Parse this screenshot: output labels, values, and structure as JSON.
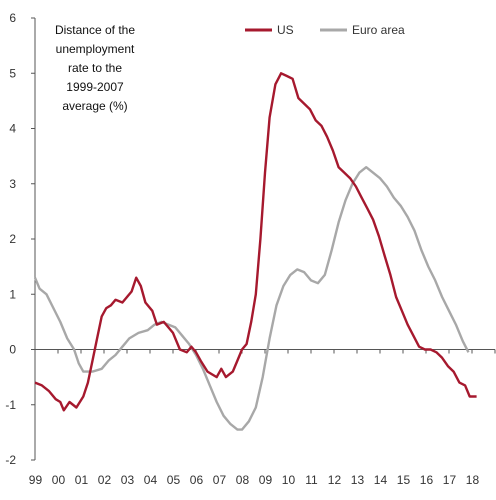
{
  "chart_data": {
    "type": "line",
    "title_lines": [
      "Distance of the",
      "unemployment",
      "rate to the",
      "1999-2007",
      "average (%)"
    ],
    "xlabel": "",
    "ylabel": "",
    "x_ticks": [
      "99",
      "00",
      "01",
      "02",
      "03",
      "04",
      "05",
      "06",
      "07",
      "08",
      "09",
      "10",
      "11",
      "12",
      "13",
      "14",
      "15",
      "16",
      "17",
      "18"
    ],
    "xlim": [
      1999.0,
      2019.0
    ],
    "ylim": [
      -2,
      6
    ],
    "y_ticks": [
      -2,
      -1,
      0,
      1,
      2,
      3,
      4,
      5,
      6
    ],
    "grid": false,
    "legend_position": "top-right",
    "series": [
      {
        "name": "US",
        "color": "#a6192e",
        "points": [
          [
            1999.0,
            -0.6
          ],
          [
            1999.3,
            -0.65
          ],
          [
            1999.6,
            -0.75
          ],
          [
            1999.9,
            -0.9
          ],
          [
            2000.1,
            -0.95
          ],
          [
            2000.25,
            -1.1
          ],
          [
            2000.5,
            -0.95
          ],
          [
            2000.8,
            -1.05
          ],
          [
            2001.1,
            -0.85
          ],
          [
            2001.3,
            -0.6
          ],
          [
            2001.5,
            -0.2
          ],
          [
            2001.7,
            0.2
          ],
          [
            2001.9,
            0.6
          ],
          [
            2002.1,
            0.75
          ],
          [
            2002.3,
            0.8
          ],
          [
            2002.5,
            0.9
          ],
          [
            2002.8,
            0.85
          ],
          [
            2003.0,
            0.95
          ],
          [
            2003.2,
            1.05
          ],
          [
            2003.4,
            1.3
          ],
          [
            2003.6,
            1.15
          ],
          [
            2003.8,
            0.85
          ],
          [
            2004.1,
            0.7
          ],
          [
            2004.3,
            0.45
          ],
          [
            2004.6,
            0.5
          ],
          [
            2004.8,
            0.4
          ],
          [
            2005.0,
            0.3
          ],
          [
            2005.3,
            0.0
          ],
          [
            2005.6,
            -0.05
          ],
          [
            2005.8,
            0.05
          ],
          [
            2006.0,
            -0.05
          ],
          [
            2006.2,
            -0.2
          ],
          [
            2006.5,
            -0.4
          ],
          [
            2006.7,
            -0.45
          ],
          [
            2006.9,
            -0.5
          ],
          [
            2007.1,
            -0.35
          ],
          [
            2007.3,
            -0.5
          ],
          [
            2007.6,
            -0.4
          ],
          [
            2007.8,
            -0.2
          ],
          [
            2008.0,
            0.0
          ],
          [
            2008.2,
            0.1
          ],
          [
            2008.4,
            0.5
          ],
          [
            2008.6,
            1.0
          ],
          [
            2008.8,
            2.0
          ],
          [
            2009.0,
            3.2
          ],
          [
            2009.2,
            4.2
          ],
          [
            2009.45,
            4.8
          ],
          [
            2009.7,
            5.0
          ],
          [
            2009.95,
            4.95
          ],
          [
            2010.2,
            4.9
          ],
          [
            2010.45,
            4.55
          ],
          [
            2010.7,
            4.45
          ],
          [
            2010.95,
            4.35
          ],
          [
            2011.2,
            4.15
          ],
          [
            2011.45,
            4.05
          ],
          [
            2011.7,
            3.85
          ],
          [
            2011.95,
            3.6
          ],
          [
            2012.2,
            3.3
          ],
          [
            2012.45,
            3.2
          ],
          [
            2012.7,
            3.1
          ],
          [
            2012.95,
            2.95
          ],
          [
            2013.2,
            2.75
          ],
          [
            2013.45,
            2.55
          ],
          [
            2013.7,
            2.35
          ],
          [
            2013.95,
            2.05
          ],
          [
            2014.2,
            1.7
          ],
          [
            2014.45,
            1.35
          ],
          [
            2014.7,
            0.95
          ],
          [
            2014.95,
            0.7
          ],
          [
            2015.2,
            0.45
          ],
          [
            2015.45,
            0.25
          ],
          [
            2015.7,
            0.05
          ],
          [
            2015.95,
            0.0
          ],
          [
            2016.2,
            0.0
          ],
          [
            2016.45,
            -0.05
          ],
          [
            2016.7,
            -0.15
          ],
          [
            2016.95,
            -0.3
          ],
          [
            2017.2,
            -0.4
          ],
          [
            2017.45,
            -0.6
          ],
          [
            2017.7,
            -0.65
          ],
          [
            2017.9,
            -0.85
          ],
          [
            2018.2,
            -0.85
          ]
        ]
      },
      {
        "name": "Euro area",
        "color": "#a8a8a8",
        "points": [
          [
            1999.0,
            1.3
          ],
          [
            1999.2,
            1.1
          ],
          [
            1999.5,
            1.0
          ],
          [
            1999.8,
            0.75
          ],
          [
            2000.1,
            0.5
          ],
          [
            2000.4,
            0.2
          ],
          [
            2000.7,
            0.0
          ],
          [
            2000.9,
            -0.25
          ],
          [
            2001.1,
            -0.4
          ],
          [
            2001.5,
            -0.4
          ],
          [
            2001.9,
            -0.35
          ],
          [
            2002.2,
            -0.2
          ],
          [
            2002.5,
            -0.1
          ],
          [
            2002.8,
            0.05
          ],
          [
            2003.1,
            0.2
          ],
          [
            2003.5,
            0.3
          ],
          [
            2003.9,
            0.35
          ],
          [
            2004.2,
            0.45
          ],
          [
            2004.5,
            0.5
          ],
          [
            2004.8,
            0.45
          ],
          [
            2005.1,
            0.4
          ],
          [
            2005.4,
            0.25
          ],
          [
            2005.7,
            0.1
          ],
          [
            2006.0,
            -0.1
          ],
          [
            2006.3,
            -0.35
          ],
          [
            2006.6,
            -0.65
          ],
          [
            2006.9,
            -0.95
          ],
          [
            2007.2,
            -1.2
          ],
          [
            2007.5,
            -1.35
          ],
          [
            2007.8,
            -1.45
          ],
          [
            2008.0,
            -1.45
          ],
          [
            2008.3,
            -1.3
          ],
          [
            2008.6,
            -1.05
          ],
          [
            2008.9,
            -0.5
          ],
          [
            2009.2,
            0.2
          ],
          [
            2009.5,
            0.8
          ],
          [
            2009.8,
            1.15
          ],
          [
            2010.1,
            1.35
          ],
          [
            2010.4,
            1.45
          ],
          [
            2010.7,
            1.4
          ],
          [
            2011.0,
            1.25
          ],
          [
            2011.3,
            1.2
          ],
          [
            2011.6,
            1.35
          ],
          [
            2011.9,
            1.8
          ],
          [
            2012.2,
            2.3
          ],
          [
            2012.5,
            2.7
          ],
          [
            2012.8,
            3.0
          ],
          [
            2013.1,
            3.2
          ],
          [
            2013.4,
            3.3
          ],
          [
            2013.7,
            3.2
          ],
          [
            2014.0,
            3.1
          ],
          [
            2014.3,
            2.95
          ],
          [
            2014.6,
            2.75
          ],
          [
            2014.9,
            2.6
          ],
          [
            2015.2,
            2.4
          ],
          [
            2015.5,
            2.15
          ],
          [
            2015.8,
            1.8
          ],
          [
            2016.1,
            1.5
          ],
          [
            2016.4,
            1.25
          ],
          [
            2016.7,
            0.95
          ],
          [
            2017.0,
            0.7
          ],
          [
            2017.3,
            0.45
          ],
          [
            2017.6,
            0.15
          ],
          [
            2017.85,
            -0.05
          ]
        ]
      }
    ]
  }
}
